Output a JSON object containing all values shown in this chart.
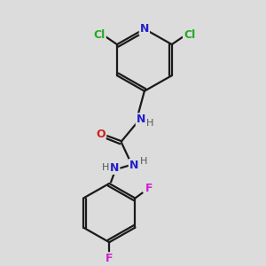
{
  "background_color": "#dcdcdc",
  "bond_color": "#1a1a1a",
  "atom_colors": {
    "N": "#2020cc",
    "O": "#cc2020",
    "Cl": "#22aa22",
    "F": "#cc22cc",
    "C": "#1a1a1a",
    "H": "#555555"
  },
  "figsize": [
    3.0,
    3.0
  ],
  "dpi": 100
}
